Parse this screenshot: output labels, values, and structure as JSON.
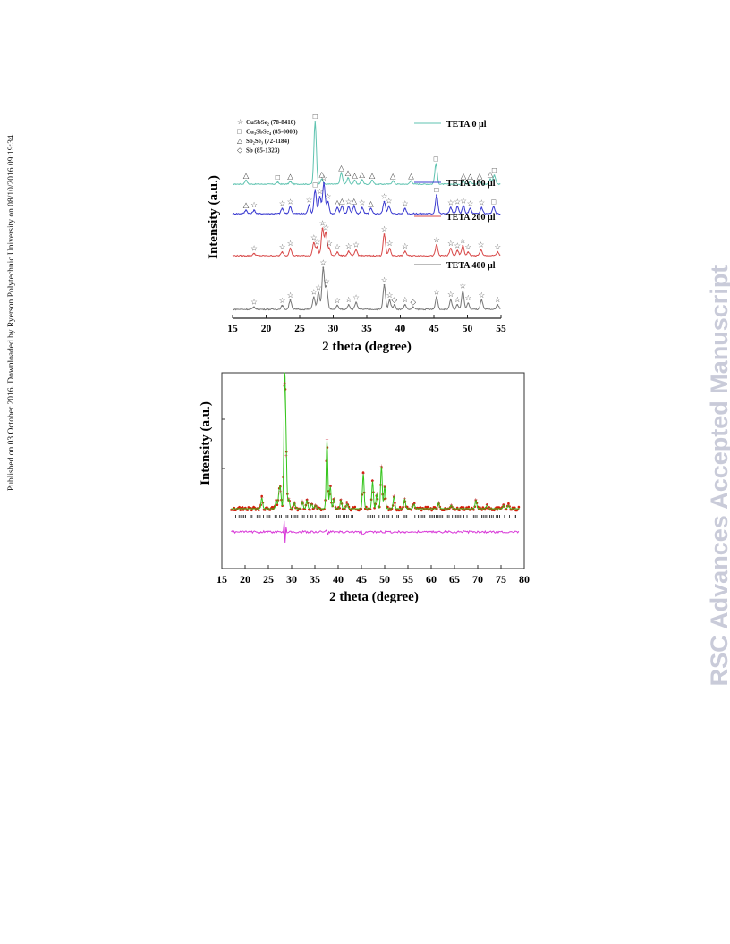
{
  "side_note": "Published on 03 October 2016. Downloaded by Ryerson Polytechnic University on 08/10/2016 09:19:34.",
  "watermark": "RSC Advances Accepted Manuscript",
  "chart_data": [
    {
      "type": "line",
      "xlabel": "2 theta (degree)",
      "ylabel": "Intensity (a.u.)",
      "xlim": [
        15,
        55
      ],
      "xticks": [
        "15",
        "20",
        "25",
        "30",
        "35",
        "40",
        "45",
        "50",
        "55"
      ],
      "legend": [
        {
          "label": "TETA 0 µl",
          "color": "#5fc3b0"
        },
        {
          "label": "TETA 100 µl",
          "color": "#3a3ad0"
        },
        {
          "label": "TETA 200 µl",
          "color": "#d84848"
        },
        {
          "label": "TETA 400 µl",
          "color": "#777777"
        }
      ],
      "phase_key": [
        {
          "symbol": "☆",
          "text": "CuSbSe₂ (78-8410)"
        },
        {
          "symbol": "□",
          "text": "Cu₃SbSe₄ (85-0003)"
        },
        {
          "symbol": "△",
          "text": "Sb₂Se₃ (72-1184)"
        },
        {
          "symbol": "◇",
          "text": "Sb (85-1323)"
        }
      ],
      "series": [
        {
          "name": "TETA 0 µl",
          "color": "#5fc3b0",
          "peaks": [
            [
              17.0,
              6
            ],
            [
              21.7,
              3
            ],
            [
              23.6,
              4
            ],
            [
              27.3,
              100
            ],
            [
              28.3,
              8
            ],
            [
              31.2,
              18
            ],
            [
              32.2,
              10
            ],
            [
              33.2,
              6
            ],
            [
              34.3,
              7
            ],
            [
              35.8,
              6
            ],
            [
              38.9,
              5
            ],
            [
              41.6,
              5
            ],
            [
              45.3,
              32
            ],
            [
              49.4,
              5
            ],
            [
              50.4,
              4
            ],
            [
              51.8,
              5
            ],
            [
              53.4,
              8
            ],
            [
              54.0,
              14
            ]
          ]
        },
        {
          "name": "TETA 100 µl",
          "color": "#3a3ad0",
          "peaks": [
            [
              17.0,
              4
            ],
            [
              18.2,
              4
            ],
            [
              22.4,
              6
            ],
            [
              23.6,
              8
            ],
            [
              26.4,
              10
            ],
            [
              27.3,
              28
            ],
            [
              28.0,
              20
            ],
            [
              28.6,
              36
            ],
            [
              29.2,
              14
            ],
            [
              30.6,
              7
            ],
            [
              31.3,
              9
            ],
            [
              32.3,
              8
            ],
            [
              33.1,
              9
            ],
            [
              34.3,
              7
            ],
            [
              35.6,
              6
            ],
            [
              37.6,
              14
            ],
            [
              38.3,
              9
            ],
            [
              40.7,
              6
            ],
            [
              45.4,
              22
            ],
            [
              47.5,
              7
            ],
            [
              48.5,
              8
            ],
            [
              49.4,
              9
            ],
            [
              50.4,
              6
            ],
            [
              52.1,
              7
            ],
            [
              53.9,
              8
            ]
          ]
        },
        {
          "name": "TETA 200 µl",
          "color": "#d84848",
          "peaks": [
            [
              18.2,
              3
            ],
            [
              22.4,
              5
            ],
            [
              23.6,
              10
            ],
            [
              27.1,
              18
            ],
            [
              27.6,
              12
            ],
            [
              28.4,
              38
            ],
            [
              28.9,
              32
            ],
            [
              29.4,
              10
            ],
            [
              30.6,
              5
            ],
            [
              32.3,
              6
            ],
            [
              33.4,
              8
            ],
            [
              37.6,
              30
            ],
            [
              38.4,
              10
            ],
            [
              40.7,
              6
            ],
            [
              45.4,
              15
            ],
            [
              47.5,
              10
            ],
            [
              48.5,
              7
            ],
            [
              49.3,
              14
            ],
            [
              50.1,
              5
            ],
            [
              52.0,
              8
            ],
            [
              54.5,
              5
            ]
          ]
        },
        {
          "name": "TETA 400 µl",
          "color": "#777777",
          "peaks": [
            [
              18.2,
              3
            ],
            [
              22.4,
              5
            ],
            [
              23.6,
              12
            ],
            [
              27.1,
              16
            ],
            [
              27.8,
              22
            ],
            [
              28.5,
              55
            ],
            [
              29.0,
              30
            ],
            [
              30.6,
              5
            ],
            [
              32.3,
              6
            ],
            [
              33.4,
              9
            ],
            [
              37.6,
              32
            ],
            [
              38.4,
              12
            ],
            [
              39.1,
              6
            ],
            [
              40.7,
              6
            ],
            [
              41.9,
              3
            ],
            [
              45.4,
              16
            ],
            [
              47.5,
              13
            ],
            [
              48.5,
              6
            ],
            [
              49.3,
              24
            ],
            [
              50.1,
              8
            ],
            [
              52.1,
              12
            ],
            [
              54.5,
              6
            ]
          ]
        }
      ]
    },
    {
      "type": "scatter",
      "xlabel": "2 theta (degree)",
      "ylabel": "Intensity (a.u.)",
      "xlim": [
        15,
        80
      ],
      "xticks": [
        "15",
        "20",
        "25",
        "30",
        "35",
        "40",
        "45",
        "50",
        "55",
        "60",
        "65",
        "70",
        "75",
        "80"
      ],
      "observed_color": "#d41e0a",
      "calculated_color": "#33c41a",
      "difference_color": "#d838d8",
      "peaks": [
        [
          23.6,
          0.09
        ],
        [
          26.7,
          0.07
        ],
        [
          27.3,
          0.12
        ],
        [
          27.6,
          0.14
        ],
        [
          28.5,
          1.0
        ],
        [
          28.8,
          0.42
        ],
        [
          29.4,
          0.08
        ],
        [
          30.6,
          0.05
        ],
        [
          32.3,
          0.06
        ],
        [
          33.3,
          0.07
        ],
        [
          34.3,
          0.04
        ],
        [
          35.1,
          0.03
        ],
        [
          37.6,
          0.55
        ],
        [
          38.3,
          0.18
        ],
        [
          39.1,
          0.08
        ],
        [
          40.6,
          0.07
        ],
        [
          41.9,
          0.04
        ],
        [
          45.4,
          0.28
        ],
        [
          47.4,
          0.22
        ],
        [
          48.3,
          0.12
        ],
        [
          49.3,
          0.34
        ],
        [
          50.0,
          0.18
        ],
        [
          52.0,
          0.1
        ],
        [
          54.3,
          0.08
        ],
        [
          56.3,
          0.04
        ],
        [
          61.6,
          0.05
        ],
        [
          64.3,
          0.03
        ],
        [
          69.6,
          0.07
        ],
        [
          72.0,
          0.03
        ],
        [
          75.6,
          0.03
        ],
        [
          76.6,
          0.03
        ]
      ]
    }
  ]
}
